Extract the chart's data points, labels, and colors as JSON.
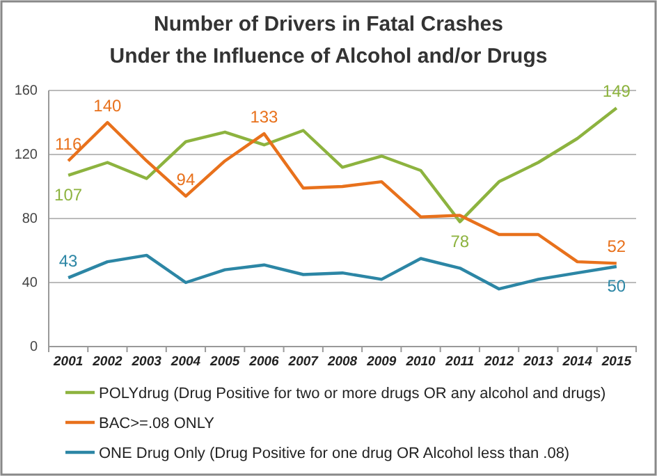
{
  "chart_data": {
    "type": "line",
    "title": "Number of Drivers in Fatal Crashes\nUnder the Influence of Alcohol and/or Drugs",
    "categories": [
      "2001",
      "2002",
      "2003",
      "2004",
      "2005",
      "2006",
      "2007",
      "2008",
      "2009",
      "2010",
      "2011",
      "2012",
      "2013",
      "2014",
      "2015"
    ],
    "series": [
      {
        "name": "POLYdrug (Drug Positive for two or more drugs OR any alcohol and drugs)",
        "color": "#8db33f",
        "values": [
          107,
          115,
          105,
          128,
          134,
          126,
          135,
          112,
          119,
          110,
          78,
          103,
          115,
          130,
          149
        ],
        "value_labels": [
          "107",
          null,
          null,
          null,
          null,
          null,
          null,
          null,
          null,
          null,
          "78",
          null,
          null,
          null,
          "149"
        ]
      },
      {
        "name": "BAC>=.08 ONLY",
        "color": "#e8711c",
        "values": [
          116,
          140,
          116,
          94,
          116,
          133,
          99,
          100,
          103,
          81,
          82,
          70,
          70,
          53,
          52
        ],
        "value_labels": [
          "116",
          "140",
          null,
          "94",
          null,
          "133",
          null,
          null,
          null,
          null,
          null,
          null,
          null,
          null,
          "52"
        ]
      },
      {
        "name": "ONE Drug Only (Drug Positive for one drug OR Alcohol less than .08)",
        "color": "#2c86a5",
        "values": [
          43,
          53,
          57,
          40,
          48,
          51,
          45,
          46,
          42,
          55,
          49,
          36,
          42,
          46,
          50
        ],
        "value_labels": [
          "43",
          null,
          null,
          null,
          null,
          null,
          null,
          null,
          null,
          null,
          null,
          null,
          null,
          null,
          "50"
        ]
      }
    ],
    "ylim": [
      0,
      160
    ],
    "yticks": [
      0,
      40,
      80,
      120,
      160
    ],
    "grid": "y",
    "legend": "bottom",
    "marker": "none",
    "line_style": "solid"
  }
}
